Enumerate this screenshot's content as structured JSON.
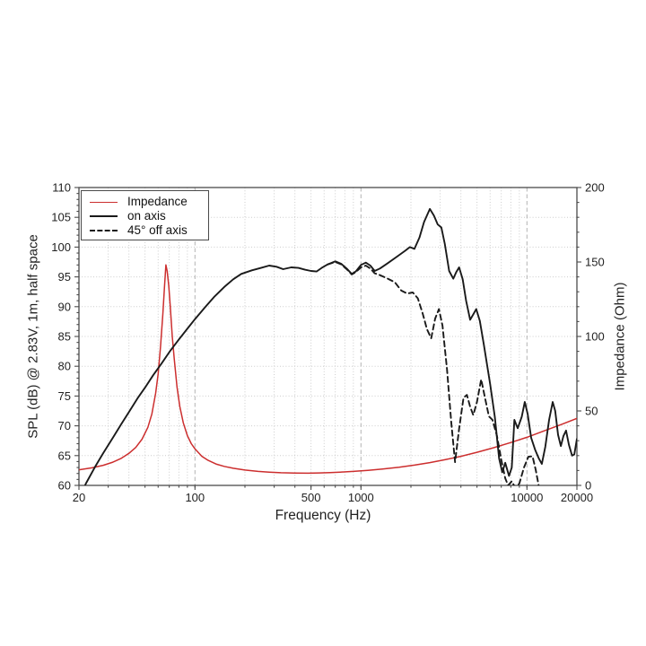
{
  "figure": {
    "background": "#ffffff",
    "colors": {
      "impedance_red": "#cc2e2e",
      "curve_black": "#1a1a1a",
      "grid_minor": "#cccccc",
      "grid_major": "#b3b3b3",
      "axis_frame": "#4a4a4a",
      "tick_text": "#222222"
    }
  },
  "chart_data": {
    "type": "line",
    "title": "",
    "xlabel": "Frequency (Hz)",
    "ylabel_left": "SPL (dB) @ 2.83V, 1m, half space",
    "ylabel_right": "Impedance (Ohm)",
    "x_scale": "log",
    "x_range": [
      20,
      20000
    ],
    "y_left_range": [
      60,
      110
    ],
    "y_right_range": [
      0,
      200
    ],
    "x_ticks_labeled": [
      20,
      100,
      500,
      1000,
      10000,
      20000
    ],
    "y_left_ticks": [
      60,
      65,
      70,
      75,
      80,
      85,
      90,
      95,
      100,
      105,
      110
    ],
    "y_left_minor_step": 1,
    "y_right_ticks": [
      0,
      50,
      100,
      150,
      200
    ],
    "y_right_minor_step": 10,
    "grid": "on",
    "legend_position": "upper-left",
    "series": [
      {
        "name": "Impedance",
        "axis": "right",
        "unit": "Ohm",
        "style": "solid",
        "color": "#cc2e2e",
        "points": [
          [
            20,
            10.5
          ],
          [
            24,
            11.8
          ],
          [
            28,
            13.5
          ],
          [
            32,
            15.6
          ],
          [
            36,
            18.2
          ],
          [
            40,
            21.5
          ],
          [
            44,
            25.5
          ],
          [
            48,
            31
          ],
          [
            52,
            39
          ],
          [
            55,
            48
          ],
          [
            58,
            62
          ],
          [
            60,
            75
          ],
          [
            62,
            93
          ],
          [
            64,
            115
          ],
          [
            65.5,
            133
          ],
          [
            66.8,
            148
          ],
          [
            68,
            144
          ],
          [
            69.5,
            134
          ],
          [
            71,
            120
          ],
          [
            73,
            100
          ],
          [
            75,
            85
          ],
          [
            78,
            66
          ],
          [
            81,
            53
          ],
          [
            85,
            42
          ],
          [
            90,
            33.5
          ],
          [
            95,
            28
          ],
          [
            100,
            24.5
          ],
          [
            110,
            19.5
          ],
          [
            120,
            16.8
          ],
          [
            135,
            14.2
          ],
          [
            150,
            12.8
          ],
          [
            170,
            11.5
          ],
          [
            200,
            10.3
          ],
          [
            240,
            9.4
          ],
          [
            280,
            8.9
          ],
          [
            330,
            8.5
          ],
          [
            400,
            8.3
          ],
          [
            480,
            8.2
          ],
          [
            560,
            8.4
          ],
          [
            650,
            8.6
          ],
          [
            750,
            8.9
          ],
          [
            900,
            9.4
          ],
          [
            1100,
            10.1
          ],
          [
            1350,
            11
          ],
          [
            1700,
            12.2
          ],
          [
            2100,
            13.6
          ],
          [
            2600,
            15.3
          ],
          [
            3200,
            17.2
          ],
          [
            4000,
            19.5
          ],
          [
            5000,
            22.2
          ],
          [
            6300,
            25.3
          ],
          [
            8000,
            28.8
          ],
          [
            10000,
            32.3
          ],
          [
            12500,
            36.3
          ],
          [
            16000,
            40.8
          ],
          [
            20000,
            45
          ]
        ]
      },
      {
        "name": "on axis",
        "axis": "left",
        "unit": "dB",
        "style": "solid",
        "color": "#1a1a1a",
        "points": [
          [
            20.6,
            58.5
          ],
          [
            22,
            60.3
          ],
          [
            25,
            63.1
          ],
          [
            28,
            65.4
          ],
          [
            32,
            68
          ],
          [
            36,
            70.3
          ],
          [
            40,
            72.3
          ],
          [
            45,
            74.6
          ],
          [
            50,
            76.4
          ],
          [
            56,
            78.5
          ],
          [
            63,
            80.5
          ],
          [
            71,
            82.6
          ],
          [
            80,
            84.5
          ],
          [
            90,
            86.3
          ],
          [
            100,
            87.9
          ],
          [
            115,
            89.9
          ],
          [
            130,
            91.6
          ],
          [
            150,
            93.3
          ],
          [
            170,
            94.6
          ],
          [
            190,
            95.5
          ],
          [
            220,
            96.1
          ],
          [
            250,
            96.5
          ],
          [
            280,
            96.9
          ],
          [
            310,
            96.7
          ],
          [
            340,
            96.3
          ],
          [
            380,
            96.6
          ],
          [
            420,
            96.5
          ],
          [
            460,
            96.2
          ],
          [
            500,
            96
          ],
          [
            540,
            95.9
          ],
          [
            580,
            96.5
          ],
          [
            630,
            97.1
          ],
          [
            700,
            97.6
          ],
          [
            760,
            97.2
          ],
          [
            820,
            96.4
          ],
          [
            880,
            95.5
          ],
          [
            930,
            95.9
          ],
          [
            1000,
            97
          ],
          [
            1070,
            97.4
          ],
          [
            1140,
            96.9
          ],
          [
            1210,
            96
          ],
          [
            1300,
            96.4
          ],
          [
            1450,
            97.3
          ],
          [
            1650,
            98.4
          ],
          [
            1850,
            99.4
          ],
          [
            1970,
            100
          ],
          [
            2100,
            99.7
          ],
          [
            2250,
            101.6
          ],
          [
            2400,
            104.2
          ],
          [
            2600,
            106.4
          ],
          [
            2750,
            105.3
          ],
          [
            2900,
            103.8
          ],
          [
            3050,
            103.3
          ],
          [
            3200,
            100.5
          ],
          [
            3400,
            96
          ],
          [
            3600,
            94.7
          ],
          [
            3750,
            95.8
          ],
          [
            3900,
            96.6
          ],
          [
            4100,
            94.6
          ],
          [
            4300,
            91
          ],
          [
            4550,
            87.8
          ],
          [
            4750,
            88.7
          ],
          [
            4950,
            89.6
          ],
          [
            5200,
            87.6
          ],
          [
            5500,
            83.6
          ],
          [
            6000,
            77
          ],
          [
            6400,
            71.5
          ],
          [
            6800,
            64.5
          ],
          [
            7100,
            62.2
          ],
          [
            7400,
            63.8
          ],
          [
            7800,
            61.6
          ],
          [
            8100,
            63
          ],
          [
            8400,
            71
          ],
          [
            8800,
            69.6
          ],
          [
            9300,
            71.5
          ],
          [
            9700,
            74
          ],
          [
            10100,
            72
          ],
          [
            10600,
            68
          ],
          [
            11200,
            66
          ],
          [
            11800,
            64.5
          ],
          [
            12300,
            63.6
          ],
          [
            12900,
            66.5
          ],
          [
            13600,
            71
          ],
          [
            14300,
            74
          ],
          [
            14800,
            72.5
          ],
          [
            15400,
            68.5
          ],
          [
            16000,
            66.6
          ],
          [
            16600,
            68.3
          ],
          [
            17200,
            69.2
          ],
          [
            17900,
            66.8
          ],
          [
            18700,
            65
          ],
          [
            19300,
            65.2
          ],
          [
            20000,
            67.8
          ]
        ]
      },
      {
        "name": "45° off axis",
        "axis": "left",
        "unit": "dB",
        "style": "dashed",
        "color": "#1a1a1a",
        "points": [
          [
            630,
            97.1
          ],
          [
            700,
            97.5
          ],
          [
            760,
            97.1
          ],
          [
            820,
            96.3
          ],
          [
            880,
            95.4
          ],
          [
            930,
            95.8
          ],
          [
            1000,
            96.6
          ],
          [
            1070,
            96.9
          ],
          [
            1140,
            96.4
          ],
          [
            1210,
            95.6
          ],
          [
            1300,
            95.3
          ],
          [
            1450,
            94.7
          ],
          [
            1600,
            94.1
          ],
          [
            1750,
            92.7
          ],
          [
            1900,
            92.2
          ],
          [
            2050,
            92.4
          ],
          [
            2200,
            91.4
          ],
          [
            2350,
            88.9
          ],
          [
            2500,
            86.2
          ],
          [
            2650,
            84.7
          ],
          [
            2800,
            88
          ],
          [
            2950,
            89.6
          ],
          [
            3100,
            86.8
          ],
          [
            3300,
            79.5
          ],
          [
            3500,
            70.5
          ],
          [
            3690,
            63.9
          ],
          [
            3900,
            69.5
          ],
          [
            4150,
            74.7
          ],
          [
            4350,
            75.2
          ],
          [
            4550,
            73.2
          ],
          [
            4750,
            71.8
          ],
          [
            5000,
            74
          ],
          [
            5300,
            77.8
          ],
          [
            5600,
            74.6
          ],
          [
            5900,
            71.6
          ],
          [
            6200,
            71
          ],
          [
            6600,
            68.3
          ],
          [
            7000,
            64.3
          ],
          [
            7400,
            61.2
          ],
          [
            7700,
            60
          ],
          [
            8100,
            60.7
          ],
          [
            8500,
            59.6
          ],
          [
            9000,
            60.3
          ],
          [
            9600,
            63
          ],
          [
            10200,
            64.8
          ],
          [
            10800,
            64.9
          ],
          [
            11300,
            62.6
          ],
          [
            11800,
            59.8
          ],
          [
            12200,
            56.5
          ]
        ]
      }
    ]
  }
}
